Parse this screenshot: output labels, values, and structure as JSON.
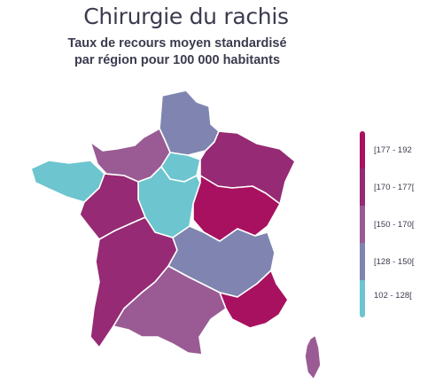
{
  "title": "Chirurgie du rachis",
  "subtitle": {
    "line1": "Taux de recours moyen standardisé",
    "line2": "par région pour 100 000 habitants"
  },
  "colors": {
    "c177_192": "#a8115f",
    "c170_177": "#962a74",
    "c150_170": "#9a5b94",
    "c128_150": "#7f85b0",
    "c102_128": "#6cc5cf",
    "border": "#ffffff"
  },
  "legend": [
    {
      "label": "[177 - 192",
      "color": "#a8115f"
    },
    {
      "label": "[170 - 177[",
      "color": "#962a74"
    },
    {
      "label": "[150 - 170[",
      "color": "#9a5b94"
    },
    {
      "label": "[128 - 150[",
      "color": "#7f85b0"
    },
    {
      "label": "102 - 128[",
      "color": "#6cc5cf"
    }
  ]
}
